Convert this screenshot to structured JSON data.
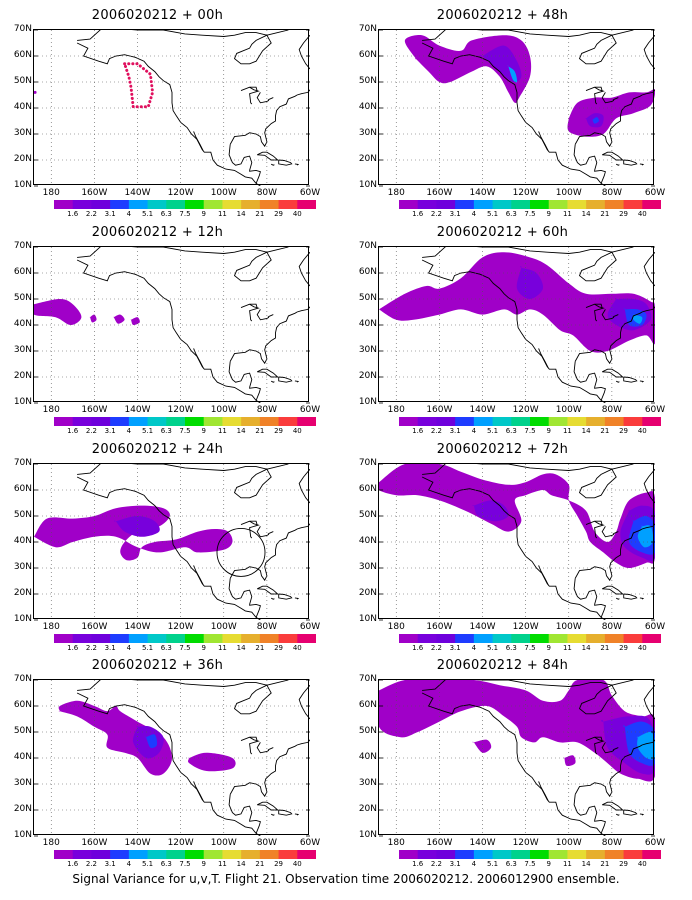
{
  "figure": {
    "caption": "Signal Variance for u,v,T. Flight 21. Observation time 2006020212. 2006012900 ensemble.",
    "latitude_labels": [
      "70N",
      "60N",
      "50N",
      "40N",
      "30N",
      "20N",
      "10N"
    ],
    "longitude_labels": [
      "180",
      "160W",
      "140W",
      "120W",
      "100W",
      "80W",
      "60W"
    ],
    "colorbar": {
      "labels": [
        "1.6",
        "2.2",
        "3.1",
        "4",
        "5.1",
        "6.3",
        "7.5",
        "9",
        "11",
        "14",
        "21",
        "29",
        "40"
      ],
      "colors": [
        "#a000c8",
        "#7800dc",
        "#6e00dc",
        "#1e3cff",
        "#00a0ff",
        "#00c8c8",
        "#00d28c",
        "#00dc00",
        "#a0e632",
        "#e6dc32",
        "#e6af2d",
        "#f08228",
        "#fa3c3c",
        "#e60070"
      ]
    },
    "panels": [
      {
        "title": "2006020212 + 00h"
      },
      {
        "title": "2006020212 + 48h"
      },
      {
        "title": "2006020212 + 12h"
      },
      {
        "title": "2006020212 + 60h"
      },
      {
        "title": "2006020212 + 24h"
      },
      {
        "title": "2006020212 + 72h"
      },
      {
        "title": "2006020212 + 36h"
      },
      {
        "title": "2006020212 + 84h"
      }
    ]
  }
}
